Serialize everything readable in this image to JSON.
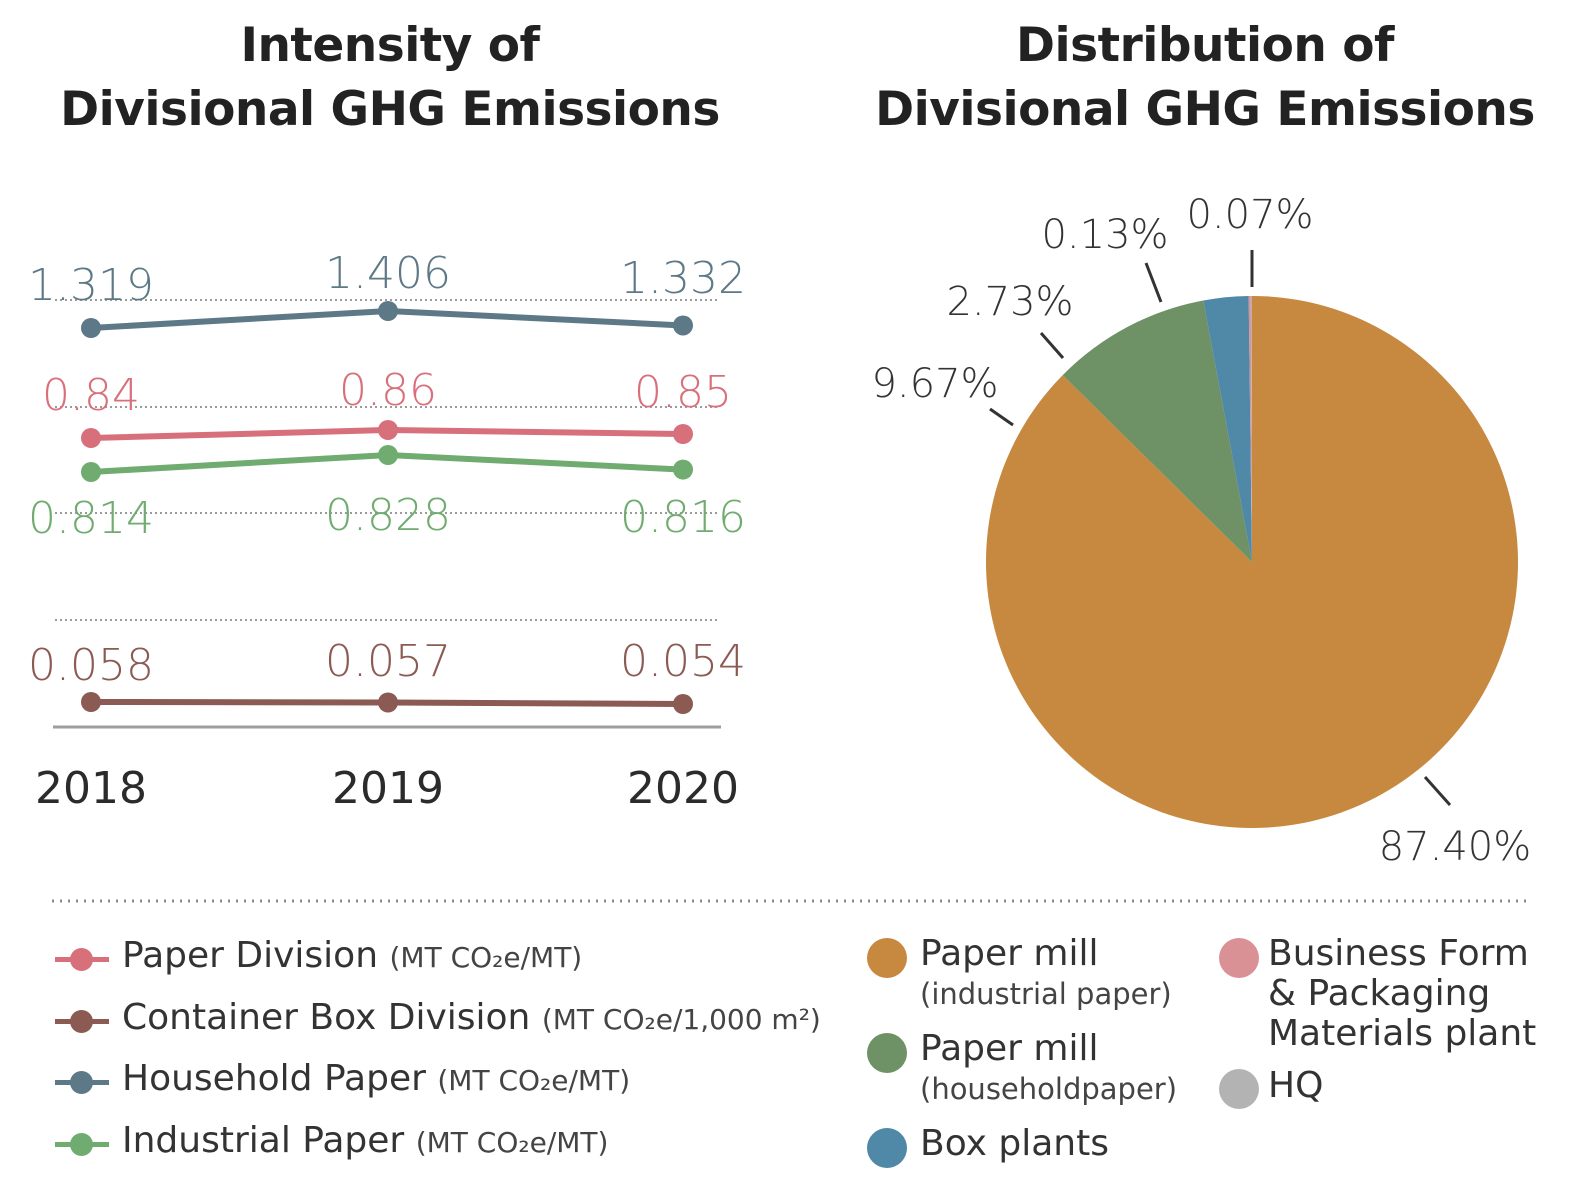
{
  "titles": {
    "left_line1": "Intensity of",
    "left_line2": "Divisional GHG Emissions",
    "right_line1": "Distribution of",
    "right_line2": "Divisional GHG Emissions"
  },
  "chart_data": [
    {
      "type": "line",
      "title": "Intensity of Divisional GHG Emissions",
      "x": [
        "2018",
        "2019",
        "2020"
      ],
      "series": [
        {
          "name": "Household Paper",
          "unit": "(MT CO₂e/MT)",
          "color": "#5d7886",
          "values": [
            1.319,
            1.406,
            1.332
          ],
          "labels": [
            "1.319",
            "1.406",
            "1.332"
          ]
        },
        {
          "name": "Paper Division",
          "unit": "(MT CO₂e/MT)",
          "color": "#d7707b",
          "values": [
            0.84,
            0.86,
            0.85
          ],
          "labels": [
            "0.84",
            "0.86",
            "0.85"
          ]
        },
        {
          "name": "Industrial Paper",
          "unit": "(MT CO₂e/MT)",
          "color": "#70ab70",
          "values": [
            0.814,
            0.828,
            0.816
          ],
          "labels": [
            "0.814",
            "0.828",
            "0.816"
          ]
        },
        {
          "name": "Container Box Division",
          "unit": "(MT CO₂e/1,000 m²)",
          "color": "#8b5a52",
          "values": [
            0.058,
            0.057,
            0.054
          ],
          "labels": [
            "0.058",
            "0.057",
            "0.054"
          ]
        }
      ]
    },
    {
      "type": "pie",
      "title": "Distribution of Divisional GHG Emissions",
      "slices": [
        {
          "name": "Paper mill (industrial paper)",
          "value": 87.4,
          "label": "87.40%",
          "color": "#c6893f"
        },
        {
          "name": "Paper mill (householdpaper)",
          "value": 9.67,
          "label": "9.67%",
          "color": "#6e9165"
        },
        {
          "name": "Box plants",
          "value": 2.73,
          "label": "2.73%",
          "color": "#5088a8"
        },
        {
          "name": "Business Form & Packaging Materials plant",
          "value": 0.13,
          "label": "0.13%",
          "color": "#da9196"
        },
        {
          "name": "HQ",
          "value": 0.07,
          "label": "0.07%",
          "color": "#b3b3b3"
        }
      ]
    }
  ],
  "line_legend": [
    {
      "name": "Paper Division",
      "unit": "(MT CO₂e/MT)",
      "color": "#d7707b"
    },
    {
      "name": "Container Box Division",
      "unit": "(MT CO₂e/1,000 m²)",
      "color": "#8b5a52"
    },
    {
      "name": "Household Paper",
      "unit": "(MT CO₂e/MT)",
      "color": "#5d7886"
    },
    {
      "name": "Industrial Paper",
      "unit": "(MT CO₂e/MT)",
      "color": "#70ab70"
    }
  ],
  "pie_legend": [
    {
      "line1": "Paper mill",
      "line2": "(industrial paper)",
      "color": "#c6893f"
    },
    {
      "line1": "Paper mill",
      "line2": "(householdpaper)",
      "color": "#6e9165"
    },
    {
      "line1": "Box plants",
      "line2": "",
      "color": "#5088a8"
    },
    {
      "line1": "Business Form",
      "line2": "& Packaging",
      "line3": "Materials plant",
      "color": "#da9196"
    },
    {
      "line1": "HQ",
      "line2": "",
      "color": "#b3b3b3"
    }
  ]
}
